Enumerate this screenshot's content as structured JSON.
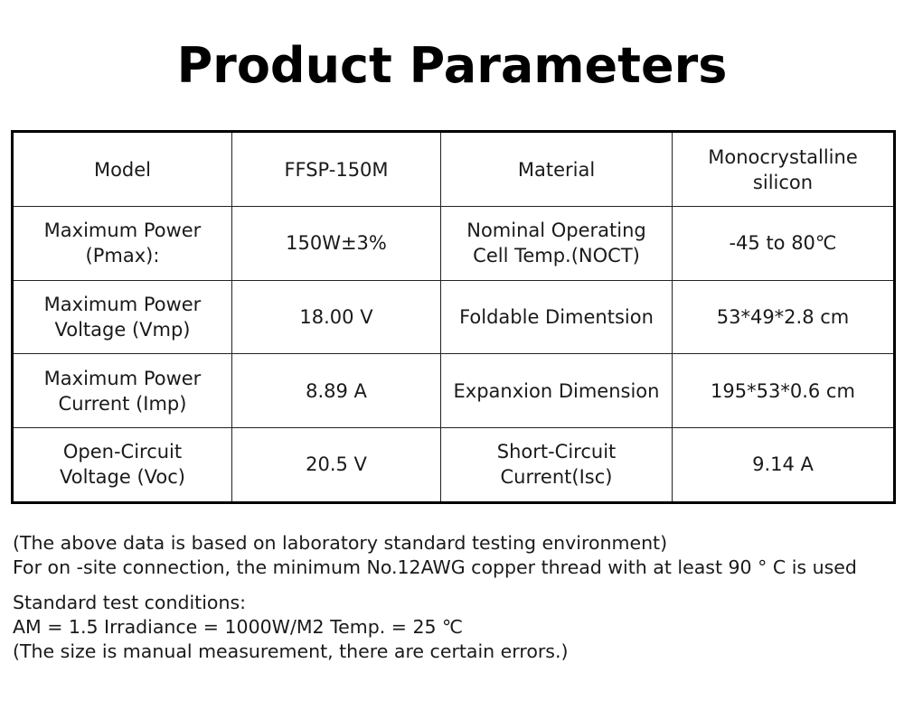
{
  "title": "Product Parameters",
  "table": {
    "rows": [
      {
        "label1": "Model",
        "value1": "FFSP-150M",
        "label2": "Material",
        "value2": "Monocrystalline\nsilicon"
      },
      {
        "label1": "Maximum Power\n(Pmax):",
        "value1": "150W±3%",
        "label2": "Nominal Operating\nCell Temp.(NOCT)",
        "value2": "-45 to 80℃"
      },
      {
        "label1": "Maximum Power\nVoltage (Vmp)",
        "value1": "18.00 V",
        "label2": "Foldable Dimentsion",
        "value2": "53*49*2.8 cm"
      },
      {
        "label1": "Maximum Power\nCurrent (Imp)",
        "value1": "8.89 A",
        "label2": "Expanxion Dimension",
        "value2": "195*53*0.6 cm"
      },
      {
        "label1": "Open-Circuit\nVoltage (Voc)",
        "value1": "20.5 V",
        "label2": "Short-Circuit\nCurrent(Isc)",
        "value2": "9.14 A"
      }
    ]
  },
  "notes": {
    "line1": "(The above data is based on laboratory standard testing environment)",
    "line2": "For on -site connection, the minimum No.12AWG copper thread with at least 90 ° C is used",
    "line3": "Standard test conditions:",
    "line4": "AM = 1.5 Irradiance = 1000W/M2 Temp. = 25 ℃",
    "line5": "(The size is manual measurement, there are certain errors.)"
  }
}
